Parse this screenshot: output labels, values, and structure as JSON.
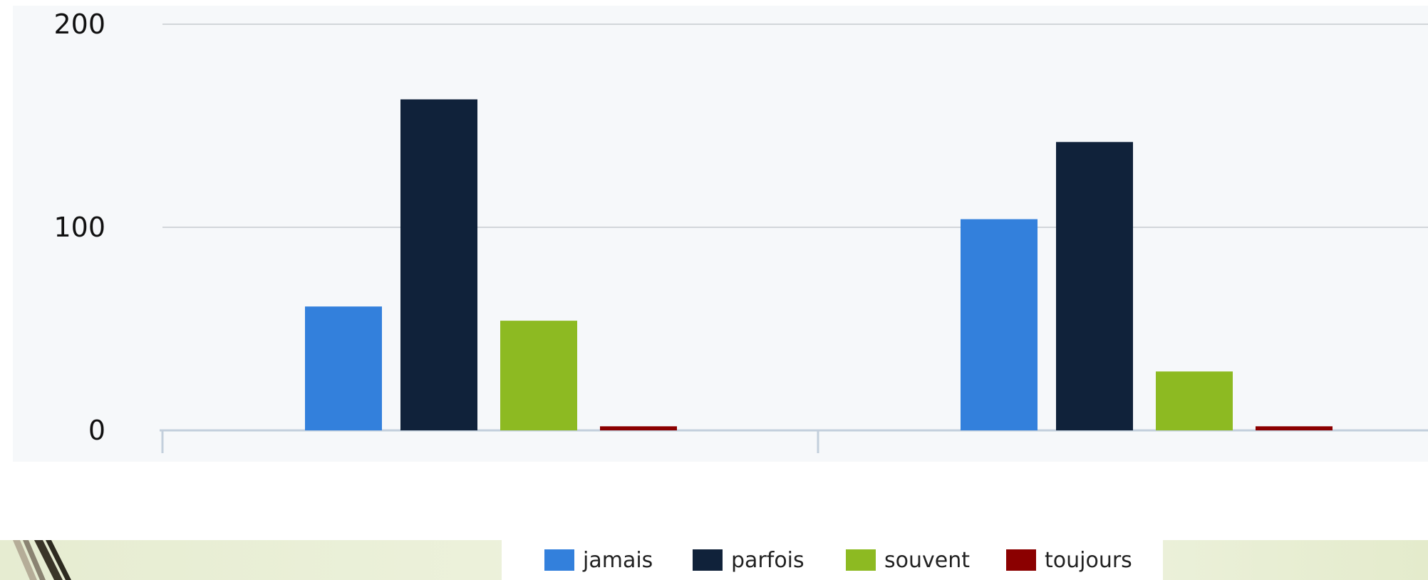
{
  "chart_data": {
    "type": "bar",
    "categories": [
      "",
      ""
    ],
    "series": [
      {
        "name": "jamais",
        "color": "#3380dc",
        "values": [
          61,
          104
        ]
      },
      {
        "name": "parfois",
        "color": "#10223a",
        "values": [
          163,
          142
        ]
      },
      {
        "name": "souvent",
        "color": "#8dba22",
        "values": [
          54,
          29
        ]
      },
      {
        "name": "toujours",
        "color": "#8b0000",
        "values": [
          2,
          2
        ]
      }
    ],
    "title": "",
    "xlabel": "",
    "ylabel": "",
    "ylim": [
      0,
      200
    ],
    "yticks": [
      "0",
      "100",
      "200"
    ],
    "grid": true,
    "legend_position": "bottom-center"
  }
}
